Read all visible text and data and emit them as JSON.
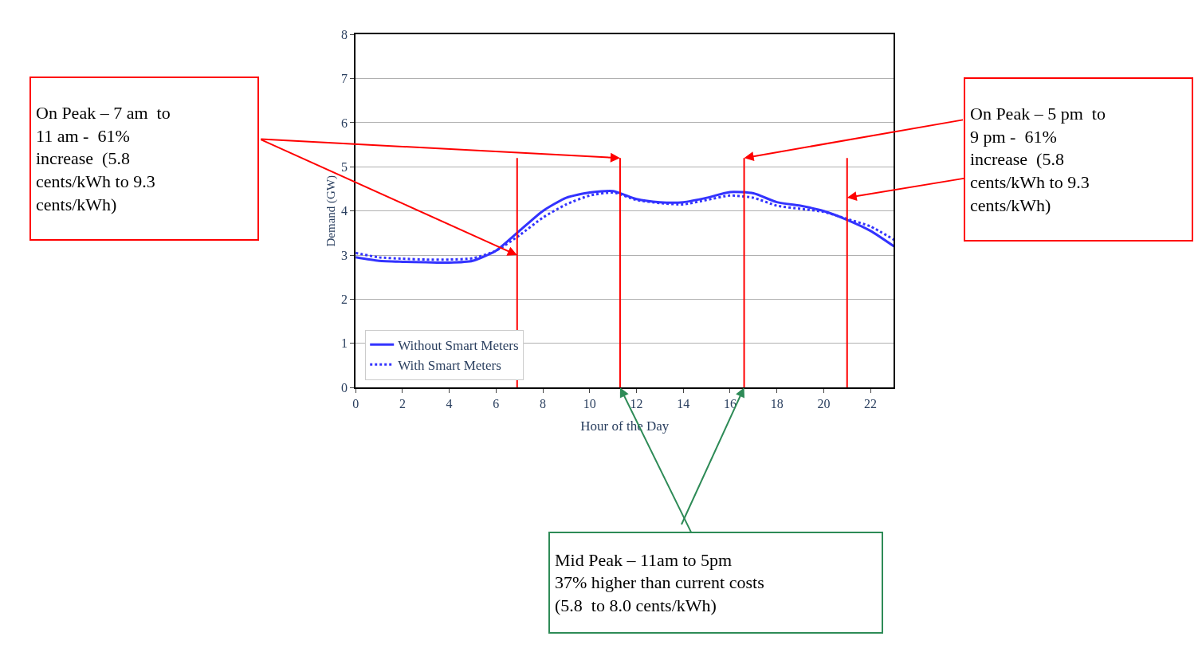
{
  "chart_data": {
    "type": "line",
    "xlabel": "Hour of the Day",
    "ylabel": "Demand (GW)",
    "x": [
      0,
      1,
      2,
      3,
      4,
      5,
      6,
      7,
      8,
      9,
      10,
      11,
      12,
      13,
      14,
      15,
      16,
      17,
      18,
      19,
      20,
      21,
      22,
      23
    ],
    "series": [
      {
        "name": "Without Smart Meters",
        "color": "#3333ff",
        "line_style": "solid",
        "values": [
          2.95,
          2.87,
          2.85,
          2.84,
          2.83,
          2.87,
          3.1,
          3.55,
          4.0,
          4.3,
          4.42,
          4.45,
          4.27,
          4.2,
          4.2,
          4.3,
          4.43,
          4.4,
          4.2,
          4.12,
          4.0,
          3.8,
          3.55,
          3.2
        ]
      },
      {
        "name": "With Smart Meters",
        "color": "#3333ff",
        "line_style": "dotted",
        "values": [
          3.05,
          2.95,
          2.92,
          2.9,
          2.9,
          2.93,
          3.1,
          3.45,
          3.85,
          4.15,
          4.35,
          4.42,
          4.25,
          4.18,
          4.15,
          4.25,
          4.35,
          4.3,
          4.12,
          4.05,
          3.98,
          3.82,
          3.65,
          3.35
        ]
      }
    ],
    "xlim": [
      0,
      23
    ],
    "xticks": [
      0,
      2,
      4,
      6,
      8,
      10,
      12,
      14,
      16,
      18,
      20,
      22
    ],
    "ylim": [
      0,
      8
    ],
    "yticks": [
      0,
      1,
      2,
      3,
      4,
      5,
      6,
      7,
      8
    ],
    "grid": "y",
    "legend": "bottom left",
    "ref_lines": [
      {
        "axis": "x",
        "value": 6.9,
        "color": "#ff0000"
      },
      {
        "axis": "x",
        "value": 11.3,
        "color": "#ff0000"
      },
      {
        "axis": "x",
        "value": 16.6,
        "color": "#ff0000"
      },
      {
        "axis": "x",
        "value": 21,
        "color": "#ff0000"
      }
    ],
    "annotations": [
      "On Peak – 7 am  to\n11 am -  61%\nincrease  (5.8\ncents/kWh to 9.3\ncents/kWh)",
      {
        "text": "On Peak – 5 pm  to\n9 pm -  61%\nincrease  (5.8\ncents/kWh to 9.3\ncents/kWh)",
        "x": 21,
        "y": 4.3
      },
      {
        "text": "Mid Peak – 11am to 5pm\n37% higher than current costs\n(5.8  to 8.0 cents/kWh)",
        "x": 11.3,
        "y": 0
      }
    ]
  }
}
